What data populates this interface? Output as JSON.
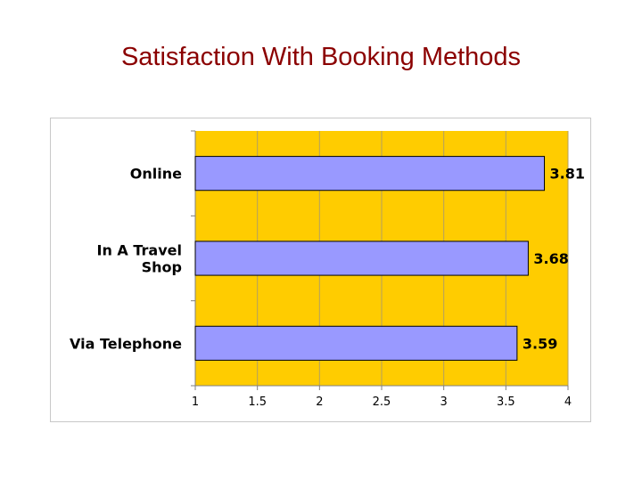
{
  "slide": {
    "title": "Satisfaction With Booking Methods"
  },
  "colors": {
    "plot_background": "#ffcc00",
    "bar_fill": "#9999ff",
    "bar_stroke": "#000000",
    "grid": "#b3a060",
    "title": "#8b0000"
  },
  "chart_data": {
    "type": "bar",
    "orientation": "horizontal",
    "title": "",
    "xlabel": "",
    "ylabel": "",
    "categories": [
      [
        "Online"
      ],
      [
        "In A Travel",
        "Shop"
      ],
      [
        "Via Telephone"
      ]
    ],
    "values": [
      3.81,
      3.68,
      3.59
    ],
    "value_labels": [
      "3.81",
      "3.68",
      "3.59"
    ],
    "xlim": [
      1,
      4
    ],
    "xticks": [
      1,
      1.5,
      2,
      2.5,
      3,
      3.5,
      4
    ],
    "xtick_labels": [
      "1",
      "1.5",
      "2",
      "2.5",
      "3",
      "3.5",
      "4"
    ],
    "grid": "vertical",
    "legend": "none"
  }
}
